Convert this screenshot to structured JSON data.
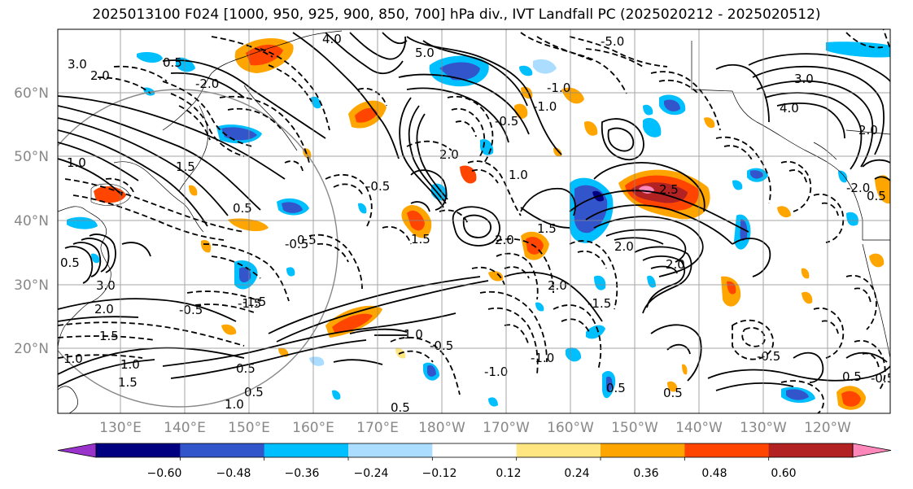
{
  "title": "2025013100 F024 [1000, 950, 925, 900, 850, 700] hPa div., IVT Landfall PC (2025020212 - 2025020512)",
  "lat_labels": [
    "60°N",
    "50°N",
    "40°N",
    "30°N",
    "20°N"
  ],
  "lon_labels": [
    "130°E",
    "140°E",
    "150°E",
    "160°E",
    "170°E",
    "180°W",
    "170°W",
    "160°W",
    "150°W",
    "140°W",
    "130°W",
    "120°W"
  ],
  "colorbar": {
    "ticks": [
      "−0.60",
      "−0.48",
      "−0.36",
      "−0.24",
      "−0.12",
      "0.12",
      "0.24",
      "0.36",
      "0.48",
      "0.60"
    ],
    "colors": [
      "#9933cc",
      "#000080",
      "#3355cc",
      "#00bfff",
      "#aaddff",
      "#ffffff",
      "#ffe680",
      "#ffa500",
      "#ff4500",
      "#b22222",
      "#ff88bb"
    ]
  },
  "contour_labels": [
    "3.0",
    "4.0",
    "2.0",
    "0.5",
    "5.0",
    "-5.0",
    "-2.0",
    "1.0",
    "-1.0",
    "2.0",
    "1.5",
    "-1.5",
    "-0.5",
    "2.5",
    "0.5",
    "3.0",
    "4.0",
    "2.0",
    "1.0",
    "-0.5",
    "1.5",
    "-1.0",
    "2.0",
    "-2.0",
    "0.5",
    "1.0",
    "-1.0",
    "0.5",
    "-0.5",
    "0.5",
    "3.0",
    "2.0",
    "1.5",
    "1.0",
    "1.5",
    "-1.5",
    "-0.5",
    "0.5",
    "1.0",
    "-0.5",
    "-1.0",
    "0.5",
    "0.5",
    "1.0",
    "1.5",
    "2.0",
    "2.0",
    "-1.5",
    "-0.5",
    "2.0",
    "0.5",
    "-0.5",
    "0.5",
    "0.5"
  ]
}
